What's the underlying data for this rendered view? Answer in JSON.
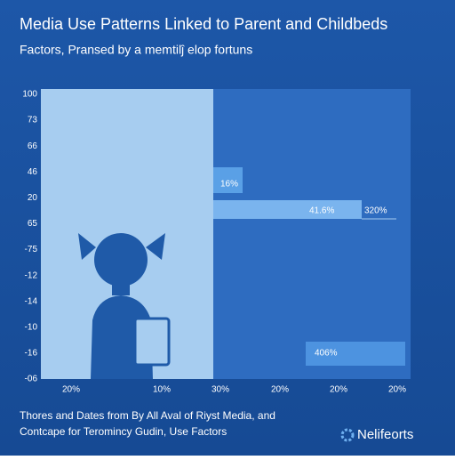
{
  "header": {
    "title": "Media Use Patterns Linked to Parent and Childbeds",
    "subtitle": "Factors, Pransed by a memtilĵ elop fortuns"
  },
  "axis": {
    "y_labels": [
      "100",
      "73",
      "66",
      "46",
      "20",
      "65",
      "-75",
      "-12",
      "-14",
      "-10",
      "-16",
      "-06"
    ],
    "x_labels": [
      "20%",
      "10%",
      "30%",
      "20%",
      "20%",
      "20%"
    ]
  },
  "bars": {
    "labels": [
      "16%",
      "41.6%",
      "320%",
      "406%"
    ]
  },
  "footer": {
    "lines": [
      "Thores and Dates from By All Aval of Riyst Media, and",
      "Contcape for Teromincy Gudin, Use Factors"
    ],
    "logo": "Nelifeorts"
  }
}
